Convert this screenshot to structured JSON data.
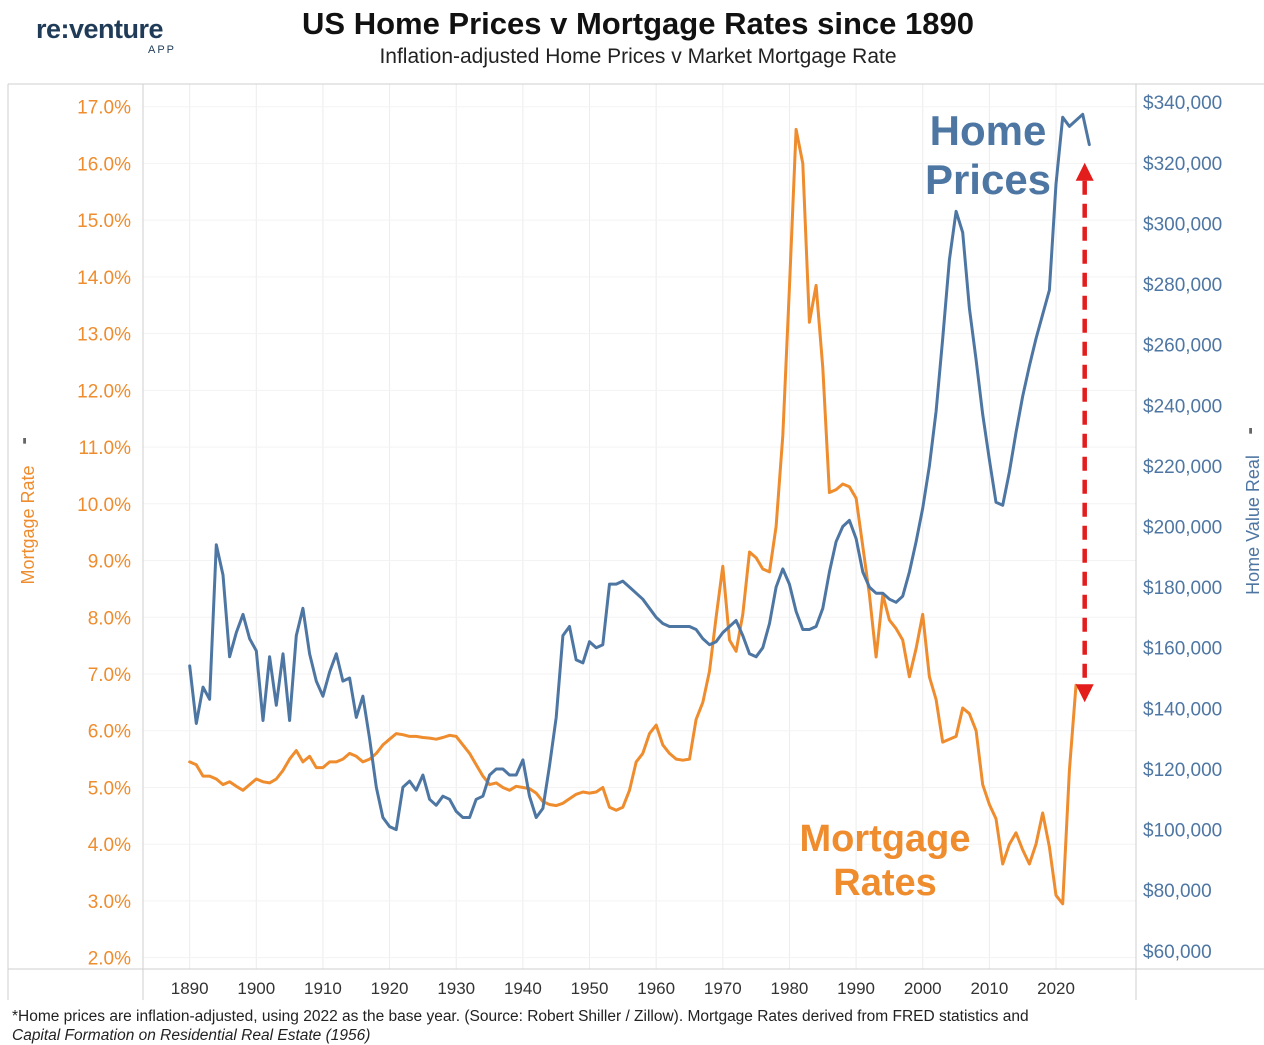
{
  "logo": {
    "brand": "re:venture",
    "sub": "APP"
  },
  "header": {
    "title": "US Home Prices v Mortgage Rates since 1890",
    "subtitle": "Inflation-adjusted Home Prices v Market Mortgage Rate"
  },
  "footnote": {
    "line1": "*Home prices are inflation-adjusted, using 2022 as the base year. (Source: Robert Shiller / Zillow). Mortgage Rates derived from FRED statistics and",
    "line2": "Capital Formation on Residential Real Estate (1956)"
  },
  "colors": {
    "mortgage": "#ee8c2e",
    "home": "#4e76a3",
    "arrow": "#e31c1c",
    "grid": "#ececec"
  },
  "chart_data": {
    "type": "line",
    "title": "US Home Prices v Mortgage Rates since 1890",
    "subtitle": "Inflation-adjusted Home Prices v Market Mortgage Rate",
    "xlabel": "",
    "y_left_label": "Mortgage Rate",
    "y_right_label": "Home Value Real",
    "xlim": [
      1883,
      2032
    ],
    "y_left_lim": [
      1.8,
      17.4
    ],
    "y_right_lim": [
      54000,
      346000
    ],
    "x_ticks": [
      1890,
      1900,
      1910,
      1920,
      1930,
      1940,
      1950,
      1960,
      1970,
      1980,
      1990,
      2000,
      2010,
      2020
    ],
    "y_left_ticks": [
      "2.0%",
      "3.0%",
      "4.0%",
      "5.0%",
      "6.0%",
      "7.0%",
      "8.0%",
      "9.0%",
      "10.0%",
      "11.0%",
      "12.0%",
      "13.0%",
      "14.0%",
      "15.0%",
      "16.0%",
      "17.0%"
    ],
    "y_left_tick_values": [
      2,
      3,
      4,
      5,
      6,
      7,
      8,
      9,
      10,
      11,
      12,
      13,
      14,
      15,
      16,
      17
    ],
    "y_right_ticks": [
      "$60,000",
      "$80,000",
      "$100,000",
      "$120,000",
      "$140,000",
      "$160,000",
      "$180,000",
      "$200,000",
      "$220,000",
      "$240,000",
      "$260,000",
      "$280,000",
      "$300,000",
      "$320,000",
      "$340,000"
    ],
    "y_right_tick_values": [
      60000,
      80000,
      100000,
      120000,
      140000,
      160000,
      180000,
      200000,
      220000,
      240000,
      260000,
      280000,
      300000,
      320000,
      340000
    ],
    "annotations": {
      "home_label_1": "Home",
      "home_label_2": "Prices",
      "mortgage_label_1": "Mortgage",
      "mortgage_label_2": "Rates"
    },
    "series": [
      {
        "name": "Mortgage Rates",
        "axis": "left",
        "points": [
          [
            1890,
            5.45
          ],
          [
            1891,
            5.4
          ],
          [
            1892,
            5.2
          ],
          [
            1893,
            5.2
          ],
          [
            1894,
            5.15
          ],
          [
            1895,
            5.05
          ],
          [
            1896,
            5.1
          ],
          [
            1897,
            5.02
          ],
          [
            1898,
            4.95
          ],
          [
            1899,
            5.05
          ],
          [
            1900,
            5.15
          ],
          [
            1901,
            5.1
          ],
          [
            1902,
            5.08
          ],
          [
            1903,
            5.15
          ],
          [
            1904,
            5.3
          ],
          [
            1905,
            5.5
          ],
          [
            1906,
            5.65
          ],
          [
            1907,
            5.45
          ],
          [
            1908,
            5.55
          ],
          [
            1909,
            5.35
          ],
          [
            1910,
            5.35
          ],
          [
            1911,
            5.45
          ],
          [
            1912,
            5.45
          ],
          [
            1913,
            5.5
          ],
          [
            1914,
            5.6
          ],
          [
            1915,
            5.55
          ],
          [
            1916,
            5.45
          ],
          [
            1917,
            5.5
          ],
          [
            1918,
            5.6
          ],
          [
            1919,
            5.75
          ],
          [
            1920,
            5.85
          ],
          [
            1921,
            5.95
          ],
          [
            1922,
            5.93
          ],
          [
            1923,
            5.9
          ],
          [
            1924,
            5.9
          ],
          [
            1925,
            5.88
          ],
          [
            1926,
            5.87
          ],
          [
            1927,
            5.85
          ],
          [
            1928,
            5.88
          ],
          [
            1929,
            5.92
          ],
          [
            1930,
            5.9
          ],
          [
            1931,
            5.75
          ],
          [
            1932,
            5.6
          ],
          [
            1933,
            5.4
          ],
          [
            1934,
            5.2
          ],
          [
            1935,
            5.05
          ],
          [
            1936,
            5.08
          ],
          [
            1937,
            5.0
          ],
          [
            1938,
            4.95
          ],
          [
            1939,
            5.02
          ],
          [
            1940,
            5.0
          ],
          [
            1941,
            4.98
          ],
          [
            1942,
            4.9
          ],
          [
            1943,
            4.75
          ],
          [
            1944,
            4.7
          ],
          [
            1945,
            4.68
          ],
          [
            1946,
            4.72
          ],
          [
            1947,
            4.8
          ],
          [
            1948,
            4.88
          ],
          [
            1949,
            4.92
          ],
          [
            1950,
            4.9
          ],
          [
            1951,
            4.92
          ],
          [
            1952,
            5.0
          ],
          [
            1953,
            4.65
          ],
          [
            1954,
            4.6
          ],
          [
            1955,
            4.65
          ],
          [
            1956,
            4.95
          ],
          [
            1957,
            5.45
          ],
          [
            1958,
            5.6
          ],
          [
            1959,
            5.95
          ],
          [
            1960,
            6.1
          ],
          [
            1961,
            5.75
          ],
          [
            1962,
            5.6
          ],
          [
            1963,
            5.5
          ],
          [
            1964,
            5.48
          ],
          [
            1965,
            5.5
          ],
          [
            1966,
            6.2
          ],
          [
            1967,
            6.5
          ],
          [
            1968,
            7.05
          ],
          [
            1969,
            8.0
          ],
          [
            1970,
            8.9
          ],
          [
            1971,
            7.6
          ],
          [
            1972,
            7.4
          ],
          [
            1973,
            8.05
          ],
          [
            1974,
            9.15
          ],
          [
            1975,
            9.05
          ],
          [
            1976,
            8.85
          ],
          [
            1977,
            8.8
          ],
          [
            1978,
            9.6
          ],
          [
            1979,
            11.2
          ],
          [
            1980,
            13.8
          ],
          [
            1981,
            16.6
          ],
          [
            1982,
            16.0
          ],
          [
            1983,
            13.2
          ],
          [
            1984,
            13.85
          ],
          [
            1985,
            12.4
          ],
          [
            1986,
            10.2
          ],
          [
            1987,
            10.25
          ],
          [
            1988,
            10.35
          ],
          [
            1989,
            10.3
          ],
          [
            1990,
            10.1
          ],
          [
            1991,
            9.25
          ],
          [
            1992,
            8.4
          ],
          [
            1993,
            7.3
          ],
          [
            1994,
            8.4
          ],
          [
            1995,
            7.95
          ],
          [
            1996,
            7.8
          ],
          [
            1997,
            7.6
          ],
          [
            1998,
            6.95
          ],
          [
            1999,
            7.45
          ],
          [
            2000,
            8.05
          ],
          [
            2001,
            6.95
          ],
          [
            2002,
            6.55
          ],
          [
            2003,
            5.8
          ],
          [
            2004,
            5.85
          ],
          [
            2005,
            5.9
          ],
          [
            2006,
            6.4
          ],
          [
            2007,
            6.3
          ],
          [
            2008,
            6.0
          ],
          [
            2009,
            5.05
          ],
          [
            2010,
            4.7
          ],
          [
            2011,
            4.45
          ],
          [
            2012,
            3.65
          ],
          [
            2013,
            4.0
          ],
          [
            2014,
            4.2
          ],
          [
            2015,
            3.9
          ],
          [
            2016,
            3.65
          ],
          [
            2017,
            4.0
          ],
          [
            2018,
            4.55
          ],
          [
            2019,
            3.95
          ],
          [
            2020,
            3.1
          ],
          [
            2021,
            2.95
          ],
          [
            2022,
            5.3
          ],
          [
            2023,
            6.8
          ],
          [
            2024,
            6.7
          ],
          [
            2025,
            6.72
          ]
        ]
      },
      {
        "name": "Home Prices",
        "axis": "right",
        "points": [
          [
            1890,
            154000
          ],
          [
            1891,
            135000
          ],
          [
            1892,
            147000
          ],
          [
            1893,
            143000
          ],
          [
            1894,
            194000
          ],
          [
            1895,
            184000
          ],
          [
            1896,
            157000
          ],
          [
            1897,
            165000
          ],
          [
            1898,
            171000
          ],
          [
            1899,
            163000
          ],
          [
            1900,
            159000
          ],
          [
            1901,
            136000
          ],
          [
            1902,
            157000
          ],
          [
            1903,
            141000
          ],
          [
            1904,
            158000
          ],
          [
            1905,
            136000
          ],
          [
            1906,
            164000
          ],
          [
            1907,
            173000
          ],
          [
            1908,
            158000
          ],
          [
            1909,
            149000
          ],
          [
            1910,
            144000
          ],
          [
            1911,
            152000
          ],
          [
            1912,
            158000
          ],
          [
            1913,
            149000
          ],
          [
            1914,
            150000
          ],
          [
            1915,
            137000
          ],
          [
            1916,
            144000
          ],
          [
            1917,
            130000
          ],
          [
            1918,
            114000
          ],
          [
            1919,
            104000
          ],
          [
            1920,
            101000
          ],
          [
            1921,
            100000
          ],
          [
            1922,
            114000
          ],
          [
            1923,
            116000
          ],
          [
            1924,
            113000
          ],
          [
            1925,
            118000
          ],
          [
            1926,
            110000
          ],
          [
            1927,
            108000
          ],
          [
            1928,
            111000
          ],
          [
            1929,
            110000
          ],
          [
            1930,
            106000
          ],
          [
            1931,
            104000
          ],
          [
            1932,
            104000
          ],
          [
            1933,
            110000
          ],
          [
            1934,
            111000
          ],
          [
            1935,
            118000
          ],
          [
            1936,
            120000
          ],
          [
            1937,
            120000
          ],
          [
            1938,
            118000
          ],
          [
            1939,
            118000
          ],
          [
            1940,
            123000
          ],
          [
            1941,
            111000
          ],
          [
            1942,
            104000
          ],
          [
            1943,
            107000
          ],
          [
            1944,
            121000
          ],
          [
            1945,
            137000
          ],
          [
            1946,
            164000
          ],
          [
            1947,
            167000
          ],
          [
            1948,
            156000
          ],
          [
            1949,
            155000
          ],
          [
            1950,
            162000
          ],
          [
            1951,
            160000
          ],
          [
            1952,
            161000
          ],
          [
            1953,
            181000
          ],
          [
            1954,
            181000
          ],
          [
            1955,
            182000
          ],
          [
            1956,
            180000
          ],
          [
            1957,
            178000
          ],
          [
            1958,
            176000
          ],
          [
            1959,
            173000
          ],
          [
            1960,
            170000
          ],
          [
            1961,
            168000
          ],
          [
            1962,
            167000
          ],
          [
            1963,
            167000
          ],
          [
            1964,
            167000
          ],
          [
            1965,
            167000
          ],
          [
            1966,
            166000
          ],
          [
            1967,
            163000
          ],
          [
            1968,
            161000
          ],
          [
            1969,
            162000
          ],
          [
            1970,
            165000
          ],
          [
            1971,
            167000
          ],
          [
            1972,
            169000
          ],
          [
            1973,
            164000
          ],
          [
            1974,
            158000
          ],
          [
            1975,
            157000
          ],
          [
            1976,
            160000
          ],
          [
            1977,
            168000
          ],
          [
            1978,
            180000
          ],
          [
            1979,
            186000
          ],
          [
            1980,
            181000
          ],
          [
            1981,
            172000
          ],
          [
            1982,
            166000
          ],
          [
            1983,
            166000
          ],
          [
            1984,
            167000
          ],
          [
            1985,
            173000
          ],
          [
            1986,
            185000
          ],
          [
            1987,
            195000
          ],
          [
            1988,
            200000
          ],
          [
            1989,
            202000
          ],
          [
            1990,
            196000
          ],
          [
            1991,
            185000
          ],
          [
            1992,
            180000
          ],
          [
            1993,
            178000
          ],
          [
            1994,
            178000
          ],
          [
            1995,
            176000
          ],
          [
            1996,
            175000
          ],
          [
            1997,
            177000
          ],
          [
            1998,
            185000
          ],
          [
            1999,
            195000
          ],
          [
            2000,
            206000
          ],
          [
            2001,
            220000
          ],
          [
            2002,
            238000
          ],
          [
            2003,
            262000
          ],
          [
            2004,
            288000
          ],
          [
            2005,
            304000
          ],
          [
            2006,
            297000
          ],
          [
            2007,
            272000
          ],
          [
            2008,
            255000
          ],
          [
            2009,
            237000
          ],
          [
            2010,
            222000
          ],
          [
            2011,
            208000
          ],
          [
            2012,
            207000
          ],
          [
            2013,
            218000
          ],
          [
            2014,
            231000
          ],
          [
            2015,
            243000
          ],
          [
            2016,
            253000
          ],
          [
            2017,
            262000
          ],
          [
            2018,
            270000
          ],
          [
            2019,
            278000
          ],
          [
            2020,
            313000
          ],
          [
            2021,
            335000
          ],
          [
            2022,
            332000
          ],
          [
            2023,
            334000
          ],
          [
            2024,
            336000
          ],
          [
            2025,
            326000
          ]
        ]
      }
    ],
    "arrow": {
      "x": 2024,
      "y_top": 320000,
      "y_bottom": 142000
    }
  }
}
